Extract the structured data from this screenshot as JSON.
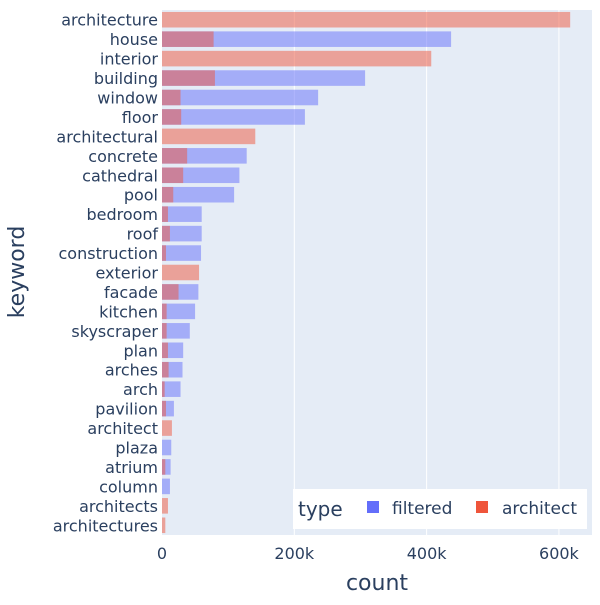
{
  "chart_data": {
    "type": "bar",
    "orientation": "horizontal",
    "barmode": "overlay",
    "xlabel": "count",
    "ylabel": "keyword",
    "xlim": [
      0,
      650000
    ],
    "x_ticks": [
      0,
      200000,
      400000,
      600000
    ],
    "x_tick_labels": [
      "0",
      "200k",
      "400k",
      "600k"
    ],
    "grid": true,
    "legend": {
      "title": "type",
      "placement": "bottom-right"
    },
    "categories": [
      "architecture",
      "house",
      "interior",
      "building",
      "window",
      "floor",
      "architectural",
      "concrete",
      "cathedral",
      "pool",
      "bedroom",
      "roof",
      "construction",
      "exterior",
      "facade",
      "kitchen",
      "skyscraper",
      "plan",
      "arches",
      "arch",
      "pavilion",
      "architect",
      "plaza",
      "atrium",
      "column",
      "architects",
      "architectures"
    ],
    "series": [
      {
        "name": "filtered",
        "color": "#636efa",
        "values": [
          0,
          437000,
          0,
          307000,
          236000,
          216000,
          0,
          128000,
          117000,
          109000,
          60000,
          60000,
          59000,
          0,
          55000,
          50000,
          42000,
          32000,
          31000,
          28000,
          18000,
          0,
          14000,
          13000,
          12000,
          0,
          0
        ]
      },
      {
        "name": "architect",
        "color": "#ef553b",
        "values": [
          617000,
          78000,
          407000,
          80000,
          28000,
          29000,
          141000,
          38000,
          32000,
          17000,
          9000,
          12000,
          6000,
          56000,
          25000,
          7000,
          7000,
          9000,
          10000,
          4000,
          6000,
          15000,
          0,
          5000,
          0,
          9000,
          5000
        ]
      }
    ]
  }
}
